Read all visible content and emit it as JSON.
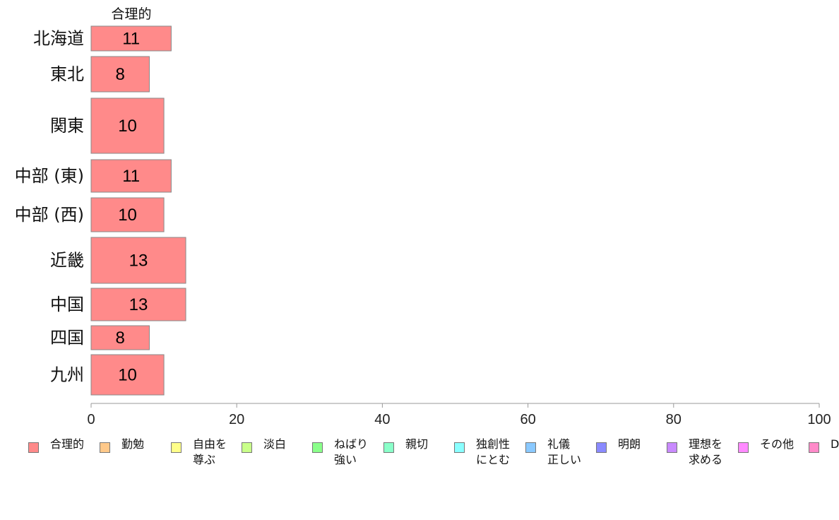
{
  "chart_data": {
    "type": "bar",
    "orientation": "horizontal",
    "categories": [
      "北海道",
      "東北",
      "関東",
      "中部 (東)",
      "中部 (西)",
      "近畿",
      "中国",
      "四国",
      "九州"
    ],
    "series": [
      {
        "name": "合理的",
        "values": [
          11,
          8,
          10,
          11,
          10,
          13,
          13,
          8,
          10
        ],
        "color": "#ff8a8a"
      }
    ],
    "xlim": [
      0,
      100
    ],
    "xticks": [
      0,
      20,
      40,
      60,
      80,
      100
    ],
    "grid": false,
    "legend_position": "bottom",
    "legend": [
      {
        "label": "合理的",
        "color": "#ff8a8a"
      },
      {
        "label": "勤勉",
        "color": "#ffc98a"
      },
      {
        "label": "自由を\n尊ぶ",
        "color": "#ffff8a"
      },
      {
        "label": "淡白",
        "color": "#c9ff8a"
      },
      {
        "label": "ねばり\n強い",
        "color": "#8aff8a"
      },
      {
        "label": "親切",
        "color": "#8affc9"
      },
      {
        "label": "独創性\nにとむ",
        "color": "#8affff"
      },
      {
        "label": "礼儀\n正しい",
        "color": "#8ac9ff"
      },
      {
        "label": "明朗",
        "color": "#8a8aff"
      },
      {
        "label": "理想を\n求める",
        "color": "#c98aff"
      },
      {
        "label": "その他",
        "color": "#ff8aff"
      },
      {
        "label": "D",
        "color": "#ff8ac9"
      }
    ]
  }
}
